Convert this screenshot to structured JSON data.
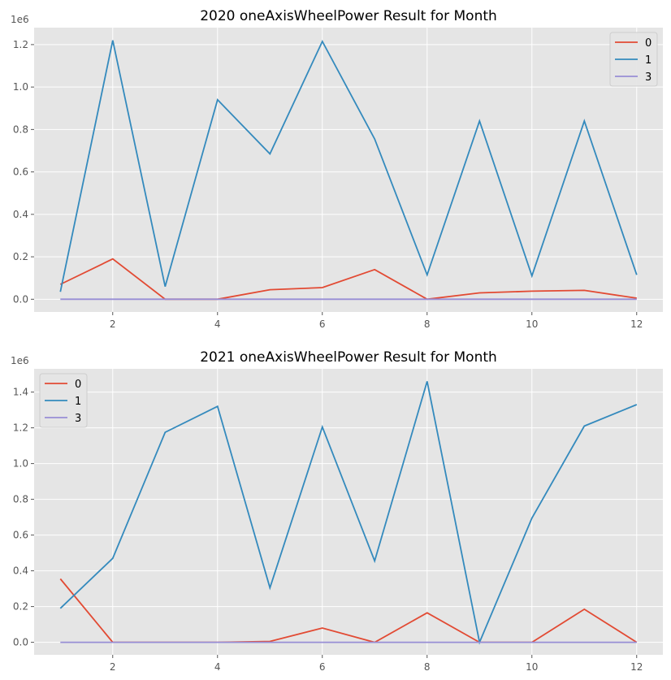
{
  "chart_data": [
    {
      "type": "line",
      "title": "2020 oneAxisWheelPower Result for Month",
      "xlabel": "",
      "ylabel": "",
      "y_multiplier": "1e6",
      "xlim": [
        0.5,
        12.5
      ],
      "ylim": [
        -0.06,
        1.28
      ],
      "x_ticks": [
        2,
        4,
        6,
        8,
        10,
        12
      ],
      "y_ticks": [
        0.0,
        0.2,
        0.4,
        0.6,
        0.8,
        1.0,
        1.2
      ],
      "y_tick_labels": [
        "0.0",
        "0.2",
        "0.4",
        "0.6",
        "0.8",
        "1.0",
        "1.2"
      ],
      "grid": true,
      "legend_position": "top-right",
      "x": [
        1,
        2,
        3,
        4,
        5,
        6,
        7,
        8,
        9,
        10,
        11,
        12
      ],
      "series": [
        {
          "name": "0",
          "color": "#E24A33",
          "values": [
            0.07,
            0.19,
            0.0,
            0.0,
            0.045,
            0.055,
            0.14,
            0.0,
            0.03,
            0.038,
            0.042,
            0.005
          ]
        },
        {
          "name": "1",
          "color": "#348ABD",
          "values": [
            0.035,
            1.22,
            0.06,
            0.94,
            0.685,
            1.215,
            0.755,
            0.115,
            0.84,
            0.11,
            0.84,
            0.115
          ]
        },
        {
          "name": "3",
          "color": "#988ED5",
          "values": [
            0,
            0,
            0,
            0,
            0,
            0,
            0,
            0,
            0,
            0,
            0,
            0
          ]
        }
      ]
    },
    {
      "type": "line",
      "title": "2021 oneAxisWheelPower Result for Month",
      "xlabel": "",
      "ylabel": "",
      "y_multiplier": "1e6",
      "xlim": [
        0.5,
        12.5
      ],
      "ylim": [
        -0.07,
        1.53
      ],
      "x_ticks": [
        2,
        4,
        6,
        8,
        10,
        12
      ],
      "y_ticks": [
        0.0,
        0.2,
        0.4,
        0.6,
        0.8,
        1.0,
        1.2,
        1.4
      ],
      "y_tick_labels": [
        "0.0",
        "0.2",
        "0.4",
        "0.6",
        "0.8",
        "1.0",
        "1.2",
        "1.4"
      ],
      "grid": true,
      "legend_position": "top-left",
      "x": [
        1,
        2,
        3,
        4,
        5,
        6,
        7,
        8,
        9,
        10,
        11,
        12
      ],
      "series": [
        {
          "name": "0",
          "color": "#E24A33",
          "values": [
            0.355,
            0.0,
            0.0,
            0.0,
            0.005,
            0.08,
            0.0,
            0.165,
            0.0,
            0.0,
            0.185,
            0.0
          ]
        },
        {
          "name": "1",
          "color": "#348ABD",
          "values": [
            0.19,
            0.47,
            1.175,
            1.32,
            0.305,
            1.205,
            0.455,
            1.46,
            0.0,
            0.695,
            1.21,
            1.33
          ]
        },
        {
          "name": "3",
          "color": "#988ED5",
          "values": [
            0,
            0,
            0,
            0,
            0,
            0,
            0,
            0,
            0,
            0,
            0,
            0
          ]
        }
      ]
    }
  ]
}
